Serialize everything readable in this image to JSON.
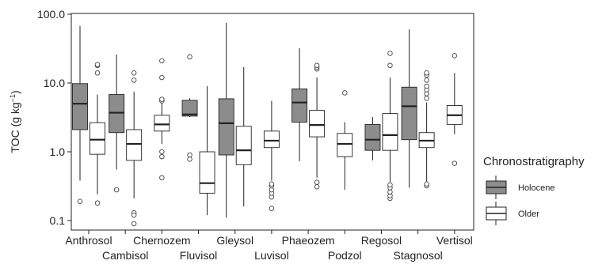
{
  "chart_data": {
    "type": "box",
    "title": "",
    "xlabel": "",
    "ylabel": "TOC (g kg",
    "ylabel_sup": "−1",
    "ylabel_suffix": ")",
    "y_scale": "log",
    "ylim": [
      0.07,
      110
    ],
    "y_ticks": [
      0.1,
      1.0,
      10.0,
      100.0
    ],
    "y_tick_labels": [
      "0.1",
      "1.0",
      "10.0",
      "100.0"
    ],
    "grid": false,
    "legend": {
      "title": "Chronostratigraphy",
      "placement": "right",
      "entries": [
        {
          "name": "Holocene",
          "color": "#8c8c8c"
        },
        {
          "name": "Older",
          "color": "#ffffff"
        }
      ]
    },
    "categories": [
      "Anthrosol",
      "Cambisol",
      "Chernozem",
      "Fluvisol",
      "Gleysol",
      "Luvisol",
      "Phaeozem",
      "Podzol",
      "Regosol",
      "Stagnosol",
      "Vertisol"
    ],
    "series": [
      {
        "name": "Holocene",
        "color": "#8c8c8c",
        "boxes": [
          {
            "category": "Anthrosol",
            "min": 0.38,
            "q1": 2.1,
            "median": 5.0,
            "q3": 9.8,
            "max": 68,
            "outliers": [
              0.19
            ]
          },
          {
            "category": "Cambisol",
            "min": 0.55,
            "q1": 1.9,
            "median": 3.7,
            "q3": 6.8,
            "max": 26,
            "outliers": [
              0.28
            ]
          },
          {
            "category": "Fluvisol",
            "min": 3.2,
            "q1": 3.3,
            "median": 3.5,
            "q3": 5.6,
            "max": 6.0,
            "outliers": [
              0.9,
              0.78,
              24
            ]
          },
          {
            "category": "Gleysol",
            "min": 0.11,
            "q1": 0.9,
            "median": 2.6,
            "q3": 5.9,
            "max": 75,
            "outliers": []
          },
          {
            "category": "Phaeozem",
            "min": 0.73,
            "q1": 2.7,
            "median": 5.2,
            "q3": 8.2,
            "max": 32,
            "outliers": []
          },
          {
            "category": "Regosol",
            "min": 0.75,
            "q1": 1.05,
            "median": 1.5,
            "q3": 2.5,
            "max": 3.2,
            "outliers": []
          },
          {
            "category": "Stagnosol",
            "min": 0.3,
            "q1": 1.5,
            "median": 4.6,
            "q3": 8.7,
            "max": 60,
            "outliers": []
          }
        ]
      },
      {
        "name": "Older",
        "color": "#ffffff",
        "boxes": [
          {
            "category": "Anthrosol",
            "min": 0.24,
            "q1": 0.92,
            "median": 1.5,
            "q3": 2.65,
            "max": 6.8,
            "outliers": [
              0.18,
              14,
              18,
              18.5
            ]
          },
          {
            "category": "Cambisol",
            "min": 0.21,
            "q1": 0.75,
            "median": 1.3,
            "q3": 2.1,
            "max": 7.5,
            "outliers": [
              0.13,
              0.12,
              0.09,
              11,
              14
            ]
          },
          {
            "category": "Chernozem",
            "min": 1.3,
            "q1": 2.0,
            "median": 2.5,
            "q3": 3.4,
            "max": 6.0,
            "outliers": [
              0.42,
              0.85,
              1.0,
              5.5,
              5.8,
              12,
              21
            ]
          },
          {
            "category": "Fluvisol",
            "min": 0.12,
            "q1": 0.25,
            "median": 0.35,
            "q3": 1.0,
            "max": 9.0,
            "outliers": []
          },
          {
            "category": "Gleysol",
            "min": 0.16,
            "q1": 0.65,
            "median": 1.05,
            "q3": 2.35,
            "max": 17,
            "outliers": []
          },
          {
            "category": "Luvisol",
            "min": 0.38,
            "q1": 1.15,
            "median": 1.45,
            "q3": 2.0,
            "max": 5.5,
            "outliers": [
              0.15,
              0.22,
              0.25,
              0.28,
              0.32,
              0.34
            ]
          },
          {
            "category": "Phaeozem",
            "min": 0.42,
            "q1": 1.65,
            "median": 2.45,
            "q3": 4.0,
            "max": 12,
            "outliers": [
              0.31,
              0.36,
              16,
              17,
              18
            ]
          },
          {
            "category": "Podzol",
            "min": 0.28,
            "q1": 0.85,
            "median": 1.3,
            "q3": 1.85,
            "max": 2.7,
            "outliers": [
              7.2
            ]
          },
          {
            "category": "Regosol",
            "min": 0.33,
            "q1": 1.05,
            "median": 1.75,
            "q3": 3.6,
            "max": 12,
            "outliers": [
              0.21,
              0.23,
              0.26,
              0.3,
              0.33,
              18,
              27
            ]
          },
          {
            "category": "Stagnosol",
            "min": 0.36,
            "q1": 1.15,
            "median": 1.45,
            "q3": 1.9,
            "max": 5.2,
            "outliers": [
              0.32,
              0.34,
              6,
              7,
              8,
              9,
              11,
              13,
              14
            ]
          },
          {
            "category": "Vertisol",
            "min": 1.8,
            "q1": 2.5,
            "median": 3.4,
            "q3": 4.7,
            "max": 14,
            "outliers": [
              0.68,
              25
            ]
          }
        ]
      }
    ]
  }
}
